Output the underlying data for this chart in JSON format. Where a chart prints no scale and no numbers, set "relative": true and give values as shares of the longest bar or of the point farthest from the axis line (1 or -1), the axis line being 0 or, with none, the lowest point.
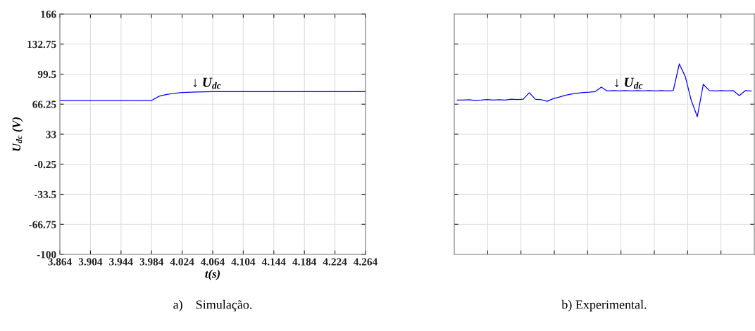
{
  "chart_data": [
    {
      "type": "line",
      "title": "a)    Simulação.",
      "xlabel": "t(s)",
      "ylabel": "U$_{dc}$ (V)",
      "x": [
        3.864,
        3.904,
        3.944,
        3.984,
        3.994,
        4.004,
        4.014,
        4.024,
        4.044,
        4.064,
        4.104,
        4.144,
        4.184,
        4.224,
        4.264
      ],
      "series": [
        {
          "color": "#0000ff",
          "values": [
            70.3,
            70.3,
            70.3,
            70.3,
            75.1,
            77,
            78.3,
            79.1,
            79.8,
            80.1,
            80.2,
            80.2,
            80.2,
            80.2,
            80.2
          ]
        }
      ],
      "xlim": [
        3.864,
        4.264
      ],
      "xticks": [
        3.864,
        3.904,
        3.944,
        3.984,
        4.024,
        4.064,
        4.104,
        4.144,
        4.184,
        4.224,
        4.264
      ],
      "ylim": [
        -100,
        166
      ],
      "yticks": [
        -100,
        -66.75,
        -33.5,
        -0.25,
        33,
        66.25,
        99.5,
        132.75,
        166
      ],
      "grid": true,
      "annotations": [
        "↓ U$_{dc}$"
      ]
    },
    {
      "type": "line",
      "title": "b) Experimental.",
      "relative": true,
      "tick_labels": false,
      "grid": true,
      "categories": [
        null,
        null,
        null,
        null,
        null,
        null,
        null,
        null,
        null,
        null,
        null,
        null,
        null,
        null,
        null,
        null,
        null,
        null,
        null,
        null,
        null,
        null,
        null,
        null,
        null,
        null,
        null,
        null,
        null,
        null,
        null,
        null,
        null,
        null,
        null,
        null,
        null,
        null,
        null,
        null,
        null,
        null,
        null,
        null,
        null,
        null,
        null,
        null,
        null,
        null
      ],
      "series": [
        {
          "color": "#0000ff",
          "values": [
            0.81,
            0.81,
            0.812,
            0.808,
            0.81,
            0.813,
            0.81,
            0.812,
            0.81,
            0.815,
            0.813,
            0.815,
            0.849,
            0.815,
            0.812,
            0.804,
            0.818,
            0.826,
            0.835,
            0.842,
            0.846,
            0.85,
            0.852,
            0.855,
            0.878,
            0.858,
            0.86,
            0.858,
            0.86,
            0.858,
            0.86,
            0.858,
            0.86,
            0.858,
            0.86,
            0.858,
            0.86,
            1,
            0.934,
            0.808,
            0.723,
            0.893,
            0.86,
            0.858,
            0.86,
            0.858,
            0.86,
            0.834,
            0.86,
            0.858
          ]
        }
      ],
      "annotations": [
        "↓ U$_{dc}$"
      ]
    }
  ]
}
